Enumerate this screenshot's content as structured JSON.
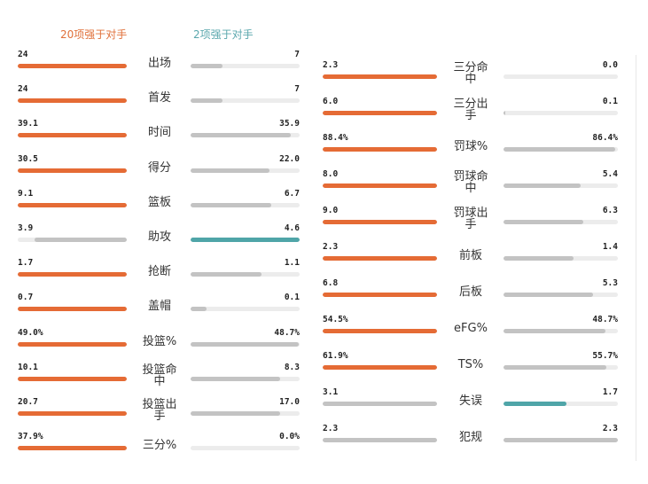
{
  "legend": {
    "team": "20项强于对手",
    "opponent": "2项强于对手"
  },
  "colors": {
    "orange": "#e56b35",
    "teal": "#4fa5a8",
    "gray": "#c3c3c3",
    "track": "#ececec"
  },
  "chart_data": {
    "type": "bar",
    "title": "",
    "series": [
      {
        "name": "20项强于对手",
        "side": "left"
      },
      {
        "name": "2项强于对手",
        "side": "right"
      }
    ],
    "columns": [
      [
        {
          "label": "出场",
          "label_lines": [
            "出场"
          ],
          "left": "24",
          "right": "7",
          "lv": 24,
          "rv": 7,
          "winner": "left"
        },
        {
          "label": "首发",
          "label_lines": [
            "首发"
          ],
          "left": "24",
          "right": "7",
          "lv": 24,
          "rv": 7,
          "winner": "left"
        },
        {
          "label": "时间",
          "label_lines": [
            "时间"
          ],
          "left": "39.1",
          "right": "35.9",
          "lv": 39.1,
          "rv": 35.9,
          "winner": "left"
        },
        {
          "label": "得分",
          "label_lines": [
            "得分"
          ],
          "left": "30.5",
          "right": "22.0",
          "lv": 30.5,
          "rv": 22.0,
          "winner": "left"
        },
        {
          "label": "篮板",
          "label_lines": [
            "篮板"
          ],
          "left": "9.1",
          "right": "6.7",
          "lv": 9.1,
          "rv": 6.7,
          "winner": "left"
        },
        {
          "label": "助攻",
          "label_lines": [
            "助攻"
          ],
          "left": "3.9",
          "right": "4.6",
          "lv": 3.9,
          "rv": 4.6,
          "winner": "right"
        },
        {
          "label": "抢断",
          "label_lines": [
            "抢断"
          ],
          "left": "1.7",
          "right": "1.1",
          "lv": 1.7,
          "rv": 1.1,
          "winner": "left"
        },
        {
          "label": "盖帽",
          "label_lines": [
            "盖帽"
          ],
          "left": "0.7",
          "right": "0.1",
          "lv": 0.7,
          "rv": 0.1,
          "winner": "left"
        },
        {
          "label": "投篮%",
          "label_lines": [
            "投篮%"
          ],
          "left": "49.0%",
          "right": "48.7%",
          "lv": 49.0,
          "rv": 48.7,
          "winner": "left"
        },
        {
          "label": "投篮命中",
          "label_lines": [
            "投篮命",
            "中"
          ],
          "left": "10.1",
          "right": "8.3",
          "lv": 10.1,
          "rv": 8.3,
          "winner": "left"
        },
        {
          "label": "投篮出手",
          "label_lines": [
            "投篮出",
            "手"
          ],
          "left": "20.7",
          "right": "17.0",
          "lv": 20.7,
          "rv": 17.0,
          "winner": "left"
        },
        {
          "label": "三分%",
          "label_lines": [
            "三分%"
          ],
          "left": "37.9%",
          "right": "0.0%",
          "lv": 37.9,
          "rv": 0.0,
          "winner": "left"
        }
      ],
      [
        {
          "label": "三分命中",
          "label_lines": [
            "三分命",
            "中"
          ],
          "left": "2.3",
          "right": "0.0",
          "lv": 2.3,
          "rv": 0.0,
          "winner": "left"
        },
        {
          "label": "三分出手",
          "label_lines": [
            "三分出",
            "手"
          ],
          "left": "6.0",
          "right": "0.1",
          "lv": 6.0,
          "rv": 0.1,
          "winner": "left"
        },
        {
          "label": "罚球%",
          "label_lines": [
            "罚球%"
          ],
          "left": "88.4%",
          "right": "86.4%",
          "lv": 88.4,
          "rv": 86.4,
          "winner": "left"
        },
        {
          "label": "罚球命中",
          "label_lines": [
            "罚球命",
            "中"
          ],
          "left": "8.0",
          "right": "5.4",
          "lv": 8.0,
          "rv": 5.4,
          "winner": "left"
        },
        {
          "label": "罚球出手",
          "label_lines": [
            "罚球出",
            "手"
          ],
          "left": "9.0",
          "right": "6.3",
          "lv": 9.0,
          "rv": 6.3,
          "winner": "left"
        },
        {
          "label": "前板",
          "label_lines": [
            "前板"
          ],
          "left": "2.3",
          "right": "1.4",
          "lv": 2.3,
          "rv": 1.4,
          "winner": "left"
        },
        {
          "label": "后板",
          "label_lines": [
            "后板"
          ],
          "left": "6.8",
          "right": "5.3",
          "lv": 6.8,
          "rv": 5.3,
          "winner": "left"
        },
        {
          "label": "eFG%",
          "label_lines": [
            "eFG%"
          ],
          "left": "54.5%",
          "right": "48.7%",
          "lv": 54.5,
          "rv": 48.7,
          "winner": "left"
        },
        {
          "label": "TS%",
          "label_lines": [
            "TS%"
          ],
          "left": "61.9%",
          "right": "55.7%",
          "lv": 61.9,
          "rv": 55.7,
          "winner": "left"
        },
        {
          "label": "失误",
          "label_lines": [
            "失误"
          ],
          "left": "3.1",
          "right": "1.7",
          "lv": 3.1,
          "rv": 1.7,
          "winner": "right"
        },
        {
          "label": "犯规",
          "label_lines": [
            "犯规"
          ],
          "left": "2.3",
          "right": "2.3",
          "lv": 2.3,
          "rv": 2.3,
          "winner": "none"
        }
      ]
    ]
  }
}
